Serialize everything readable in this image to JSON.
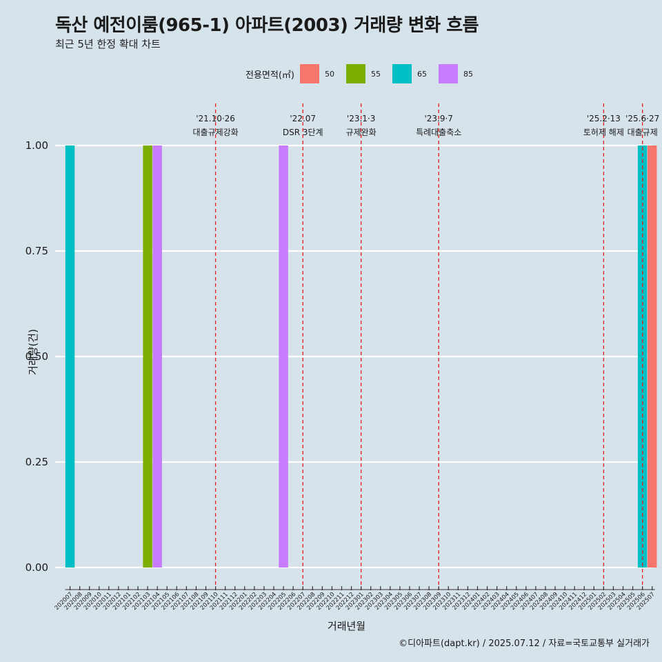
{
  "chart_data": {
    "type": "bar",
    "title": "독산 예전이룸(965-1) 아파트(2003) 거래량 변화 흐름",
    "subtitle": "최근 5년 한정 확대 차트",
    "xlabel": "거래년월",
    "ylabel": "거래량(건)",
    "caption": "©디아파트(dapt.kr) / 2025.07.12 / 자료=국토교통부 실거래가",
    "legend_title": "전용면적(㎡)",
    "legend_position": "top",
    "ylim": [
      0,
      1
    ],
    "yticks": [
      "0.00",
      "0.25",
      "0.50",
      "0.75",
      "1.00"
    ],
    "categories": [
      "202007",
      "202008",
      "202009",
      "202010",
      "202011",
      "202012",
      "202101",
      "202102",
      "202103",
      "202104",
      "202105",
      "202106",
      "202107",
      "202108",
      "202109",
      "202110",
      "202111",
      "202112",
      "202201",
      "202202",
      "202203",
      "202204",
      "202205",
      "202206",
      "202207",
      "202208",
      "202209",
      "202210",
      "202211",
      "202212",
      "202301",
      "202302",
      "202303",
      "202304",
      "202305",
      "202306",
      "202307",
      "202308",
      "202309",
      "202310",
      "202311",
      "202312",
      "202401",
      "202402",
      "202403",
      "202404",
      "202405",
      "202406",
      "202407",
      "202408",
      "202409",
      "202410",
      "202411",
      "202412",
      "202501",
      "202502",
      "202503",
      "202504",
      "202505",
      "202506",
      "202507"
    ],
    "series": [
      {
        "name": "50",
        "color": "#F8766D",
        "points": [
          {
            "x": "202507",
            "y": 1
          }
        ]
      },
      {
        "name": "55",
        "color": "#7CAE00",
        "points": [
          {
            "x": "202103",
            "y": 1
          }
        ]
      },
      {
        "name": "65",
        "color": "#00BFC4",
        "points": [
          {
            "x": "202007",
            "y": 1
          },
          {
            "x": "202506",
            "y": 1
          }
        ]
      },
      {
        "name": "85",
        "color": "#C77CFF",
        "points": [
          {
            "x": "202104",
            "y": 1
          },
          {
            "x": "202205",
            "y": 1
          }
        ]
      }
    ],
    "annotations": [
      {
        "x": "202110",
        "date": "'21.10·26",
        "label": "대출규제강화"
      },
      {
        "x": "202207",
        "date": "'22.07",
        "label": "DSR 3단계"
      },
      {
        "x": "202301",
        "date": "'23.1·3",
        "label": "규제완화"
      },
      {
        "x": "202309",
        "date": "'23.9·7",
        "label": "특례대출축소"
      },
      {
        "x": "202502",
        "date": "'25.2·13",
        "label": "토허제 해제"
      },
      {
        "x": "202506",
        "date": "'25.6·27",
        "label": "대출규제"
      }
    ],
    "grid": true
  }
}
